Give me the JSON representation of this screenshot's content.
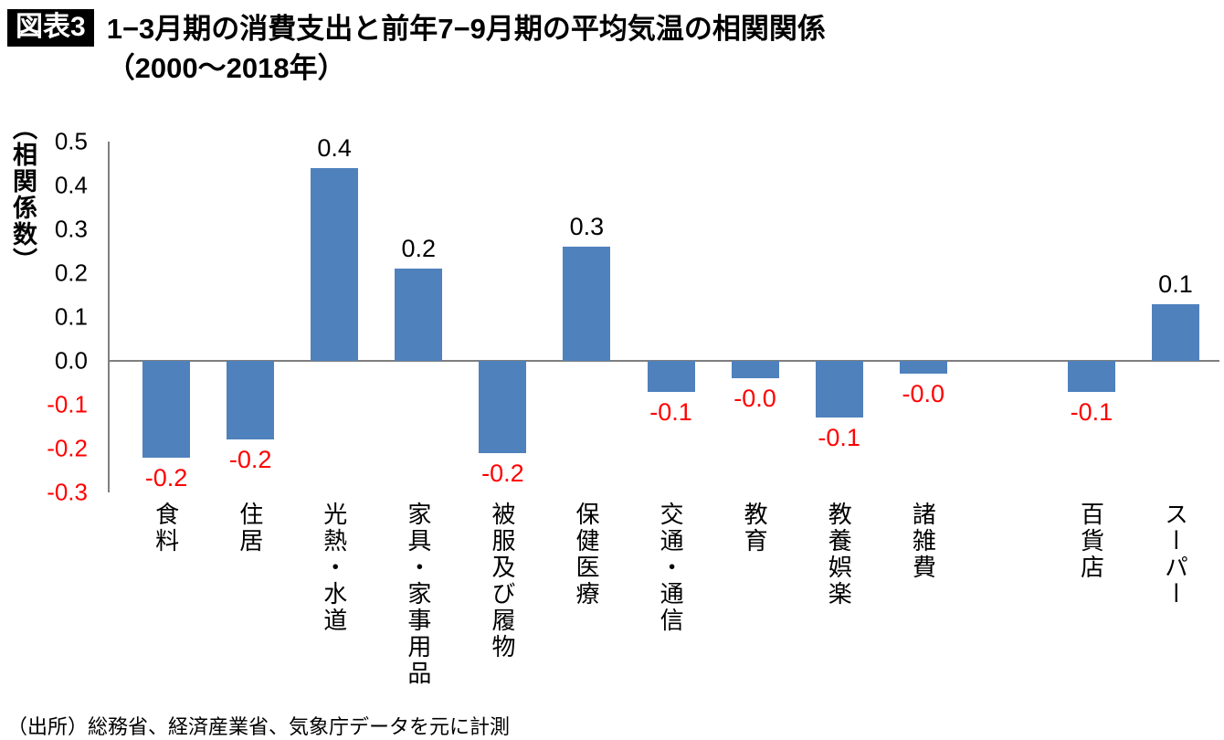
{
  "header": {
    "badge": "図表3",
    "title_line1": "1−3月期の消費支出と前年7−9月期の平均気温の相関関係",
    "title_line2": "（2000〜2018年）"
  },
  "footer": {
    "source": "（出所）総務省、経済産業省、気象庁データを元に計測"
  },
  "chart_data": {
    "type": "bar",
    "title": "1−3月期の消費支出と前年7−9月期の平均気温の相関関係（2000〜2018年）",
    "xlabel": "",
    "ylabel": "（相関係数）",
    "ylim": [
      -0.3,
      0.5
    ],
    "yticks": [
      "0.5",
      "0.4",
      "0.3",
      "0.2",
      "0.1",
      "0.0",
      "-0.1",
      "-0.2",
      "-0.3"
    ],
    "grid": false,
    "legend": false,
    "bar_color": "#4f81bd",
    "negative_label_color": "#ff0000",
    "categories": [
      "食料",
      "住居",
      "光熱・水道",
      "家具・家事用品",
      "被服及び履物",
      "保健医療",
      "交通・通信",
      "教育",
      "教養娯楽",
      "諸雑費",
      "百貨店",
      "スーパー"
    ],
    "values": [
      -0.22,
      -0.18,
      0.44,
      0.21,
      -0.21,
      0.26,
      -0.07,
      -0.04,
      -0.13,
      -0.03,
      -0.07,
      0.13
    ],
    "labels": [
      "-0.2",
      "-0.2",
      "0.4",
      "0.2",
      "-0.2",
      "0.3",
      "-0.1",
      "-0.0",
      "-0.1",
      "-0.0",
      "-0.1",
      "0.1"
    ],
    "slots": [
      0,
      1,
      2,
      3,
      4,
      5,
      6,
      7,
      8,
      9,
      11,
      12
    ],
    "total_slots": 13
  }
}
